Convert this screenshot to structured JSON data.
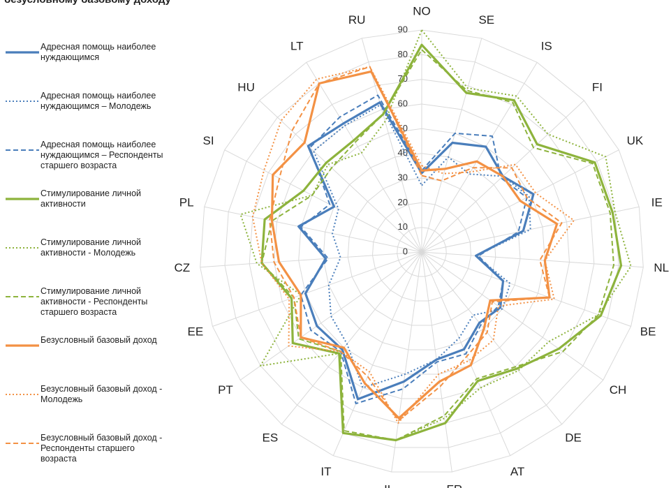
{
  "chart_data": {
    "type": "radar",
    "title": "безусловному базовому доходу",
    "categories": [
      "NO",
      "SE",
      "IS",
      "FI",
      "UK",
      "IE",
      "NL",
      "BE",
      "CH",
      "DE",
      "AT",
      "FR",
      "IL",
      "IT",
      "ES",
      "PT",
      "EE",
      "CZ",
      "PL",
      "SI",
      "HU",
      "LT",
      "RU"
    ],
    "ylim": [
      0,
      90
    ],
    "yticks": [
      0,
      10,
      20,
      30,
      40,
      50,
      60,
      70,
      80,
      90
    ],
    "grid": true,
    "legend": "left",
    "series": [
      {
        "name": "Адресная помощь наиболее нуждающимся",
        "color": "#4a7ebb",
        "dash": "solid",
        "values": [
          32,
          46,
          50,
          45,
          51,
          42,
          22,
          35,
          39,
          37,
          43,
          44,
          53,
          65,
          51,
          52,
          50,
          39,
          51,
          40,
          63,
          61,
          63
        ]
      },
      {
        "name": "Адресная помощь наиболее нуждающимся – Молодежь",
        "color": "#4a7ebb",
        "dash": "dotted",
        "values": [
          27,
          40,
          37,
          45,
          49,
          45,
          22,
          38,
          40,
          33,
          38,
          44,
          50,
          60,
          48,
          45,
          40,
          33,
          37,
          38,
          60,
          60,
          62
        ]
      },
      {
        "name": "Адресная помощь наиболее нуждающимся – Респонденты старшего возраста",
        "color": "#4a7ebb",
        "dash": "dashed",
        "values": [
          33,
          50,
          55,
          44,
          48,
          40,
          23,
          35,
          38,
          38,
          45,
          45,
          56,
          67,
          52,
          55,
          52,
          38,
          50,
          42,
          62,
          64,
          66
        ]
      },
      {
        "name": "Стимулирование личной активности",
        "color": "#8db33c",
        "dash": "solid",
        "values": [
          84,
          67,
          72,
          64,
          79,
          79,
          81,
          77,
          68,
          61,
          57,
          70,
          77,
          80,
          53,
          64,
          56,
          65,
          65,
          54,
          53,
          53,
          58
        ]
      },
      {
        "name": "Стимулирование личной активности - Молодежь",
        "color": "#8db33c",
        "dash": "dotted",
        "values": [
          90,
          69,
          74,
          70,
          84,
          80,
          85,
          76,
          63,
          62,
          60,
          68,
          77,
          80,
          53,
          80,
          52,
          67,
          75,
          50,
          52,
          47,
          55
        ]
      },
      {
        "name": "Стимулирование личной активности - Респонденты старшего возраста",
        "color": "#8db33c",
        "dash": "dashed",
        "values": [
          82,
          68,
          71,
          62,
          78,
          78,
          78,
          76,
          70,
          60,
          56,
          67,
          77,
          79,
          52,
          61,
          55,
          65,
          62,
          50,
          50,
          52,
          58
        ]
      },
      {
        "name": "Безусловный базовый доход",
        "color": "#f39144",
        "dash": "solid",
        "values": [
          33,
          35,
          43,
          45,
          45,
          56,
          50,
          55,
          34,
          40,
          50,
          53,
          68,
          58,
          50,
          60,
          52,
          58,
          62,
          68,
          65,
          80,
          76
        ]
      },
      {
        "name": "Безусловный базовый доход - Молодежь",
        "color": "#f39144",
        "dash": "dotted",
        "values": [
          35,
          33,
          38,
          52,
          52,
          63,
          50,
          57,
          38,
          46,
          48,
          50,
          70,
          53,
          52,
          66,
          57,
          65,
          70,
          72,
          78,
          82,
          78
        ]
      },
      {
        "name": "Безусловный базовый доход - Респонденты старшего возраста",
        "color": "#f39144",
        "dash": "dashed",
        "values": [
          31,
          30,
          40,
          50,
          48,
          58,
          48,
          55,
          35,
          42,
          46,
          55,
          69,
          55,
          52,
          60,
          55,
          60,
          63,
          65,
          72,
          80,
          78
        ]
      }
    ]
  }
}
